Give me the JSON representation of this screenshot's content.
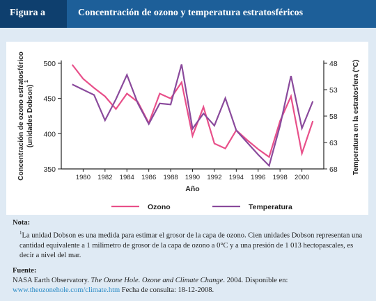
{
  "header": {
    "figure_label": "Figura a",
    "title": "Concentración de ozono y temperatura estratosféricos"
  },
  "colors": {
    "ozone": "#e8508a",
    "temperature": "#8a4a9c",
    "header_bg": "#1d5f99",
    "tab_bg": "#0e3f6e"
  },
  "chart_data": {
    "type": "line",
    "xlabel": "Año",
    "ylabel_left": "Concentración de ozono estratosférico",
    "ylabel_left_unit": "(unidades Dobson)",
    "ylabel_left_mark": "1",
    "ylabel_right": "Temperatura en la estratosfera (°C)",
    "xlim": [
      1978,
      2002
    ],
    "x_ticks": [
      1980,
      1982,
      1984,
      1986,
      1988,
      1990,
      1992,
      1994,
      1996,
      1998,
      2000
    ],
    "y_left_lim": [
      350,
      500
    ],
    "y_left_ticks": [
      350,
      400,
      450,
      500
    ],
    "y_right_lim": [
      -48,
      -68
    ],
    "y_right_ticks": [
      -48,
      -53,
      -58,
      -63,
      -68
    ],
    "y_right_tick_labels": [
      "48",
      "53",
      "58",
      "63",
      "68"
    ],
    "series": [
      {
        "name": "Ozono",
        "axis": "left",
        "x": [
          1979,
          1980,
          1981,
          1982,
          1983,
          1984,
          1985,
          1986,
          1987,
          1988,
          1989,
          1990,
          1991,
          1992,
          1993,
          1994,
          1995,
          1996,
          1997,
          1998,
          1999,
          2000,
          2001
        ],
        "y": [
          498,
          478,
          465,
          453,
          435,
          457,
          445,
          415,
          457,
          450,
          473,
          397,
          438,
          386,
          379,
          405,
          391,
          378,
          367,
          418,
          453,
          372,
          418
        ]
      },
      {
        "name": "Temperatura",
        "axis": "right",
        "x": [
          1979,
          1980,
          1981,
          1982,
          1983,
          1984,
          1985,
          1986,
          1987,
          1988,
          1989,
          1990,
          1991,
          1992,
          1993,
          1994,
          1995,
          1996,
          1997,
          1998,
          1999,
          2000,
          2001
        ],
        "y": [
          -52.0,
          -53.0,
          -54.0,
          -58.8,
          -54.8,
          -50.2,
          -55.6,
          -59.5,
          -55.6,
          -55.8,
          -48.2,
          -60.4,
          -57.5,
          -59.8,
          -54.6,
          -60.7,
          -63.0,
          -65.3,
          -67.4,
          -59.8,
          -50.4,
          -60.3,
          -55.2
        ]
      }
    ],
    "legend": [
      {
        "label": "Ozono",
        "series": "Ozono"
      },
      {
        "label": "Temperatura",
        "series": "Temperatura"
      }
    ],
    "legend_position": "bottom"
  },
  "notes": {
    "note_title": "Nota:",
    "note_mark": "1",
    "note_text": "La unidad Dobson es una medida para estimar el grosor de la capa de ozono. Cien unidades Dobson representan una cantidad equivalente a 1 milimetro de grosor de la capa de ozono a 0°C y a una presión de 1 013 hectopascales, es decir a nivel del mar.",
    "source_title": "Fuente:",
    "source_prefix": "NASA Earth Observatory.",
    "source_italic": "The Ozone Hole. Ozone and Climate Change",
    "source_year": ". 2004. Disponible en:",
    "source_link": "www.theozonehole.com/climate.htm",
    "source_date": "Fecha de consulta: 18-12-2008."
  }
}
